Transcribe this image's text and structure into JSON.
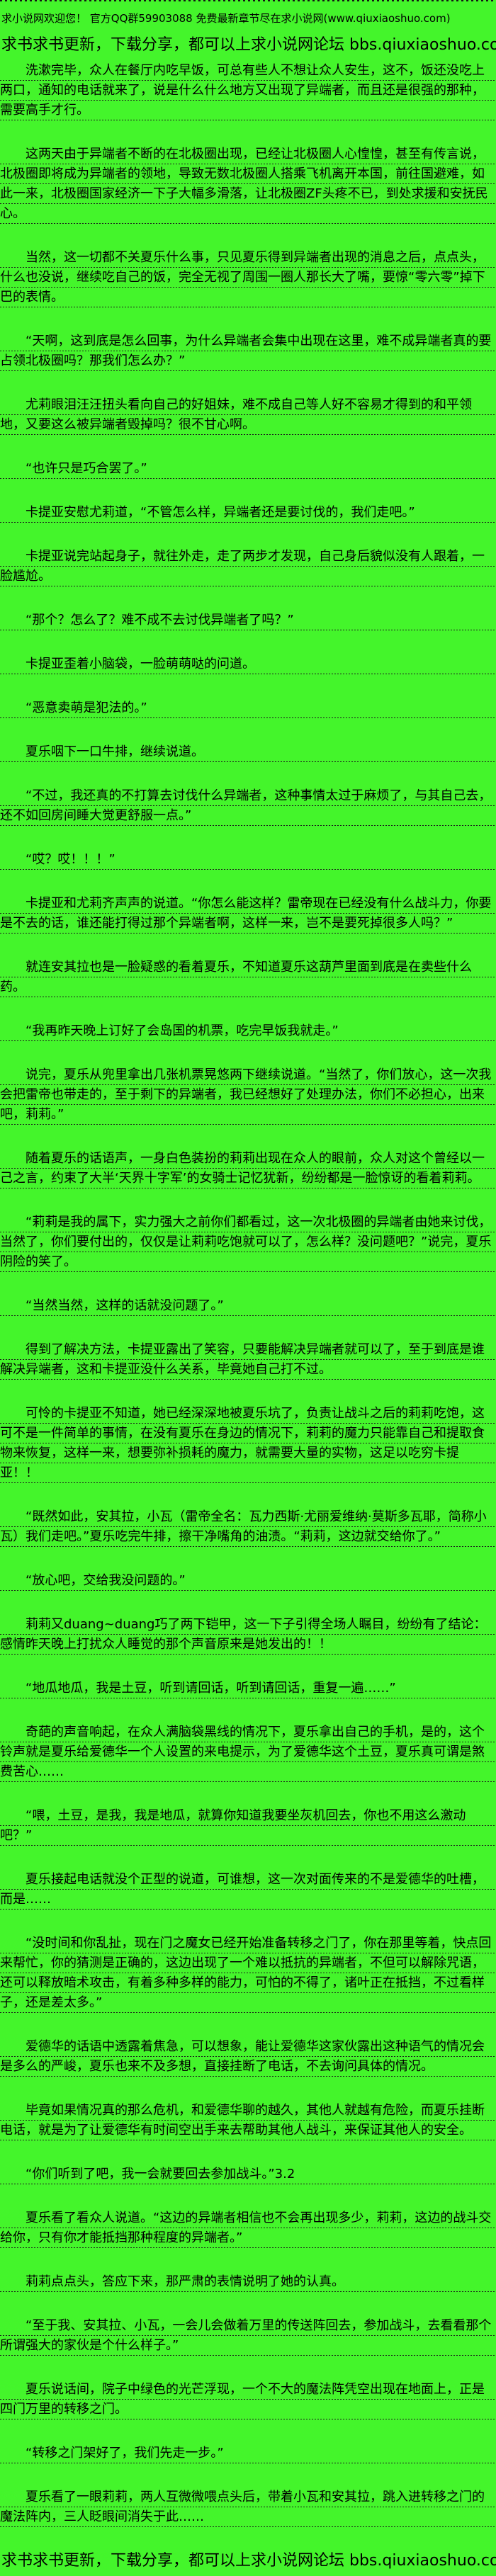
{
  "page": {
    "background_color": "#44F52B",
    "text_color": "#000000",
    "rule_color": "#1b1b1b"
  },
  "header": {
    "welcome_line": "求小说网欢迎您！ 官方QQ群59903088 免费最新章节尽在求小说网(www.qiuxiaoshuo.com)",
    "forum_line": "求书求书更新，下载分享，都可以上求小说网论坛 bbs.qiuxiaoshuo.com"
  },
  "chapter": {
    "paragraphs": [
      "洗漱完毕，众人在餐厅内吃早饭，可总有些人不想让众人安生，这不，饭还没吃上两口，通知的电话就来了，说是什么什么地方又出现了异端者，而且还是很强的那种，需要高手才行。",
      "这两天由于异端者不断的在北极圈出现，已经让北极圈人心惶惶，甚至有传言说，北极圈即将成为异端者的领地，导致无数北极圈人搭乘飞机离开本国，前往国避难，如此一来，北极圈国家经济一下子大幅多滑落，让北极圈ZF头疼不已，到处求援和安抚民心。",
      "当然，这一切都不关夏乐什么事，只见夏乐得到异端者出现的消息之后，点点头，什么也没说，继续吃自己的饭，完全无视了周围一圈人那长大了嘴，要惊“零六零”掉下巴的表情。",
      "“天啊，这到底是怎么回事，为什么异端者会集中出现在这里，难不成异端者真的要占领北极圈吗？那我们怎么办？”",
      "尤莉眼泪汪汪扭头看向自己的好姐妹，难不成自己等人好不容易才得到的和平领地，又要这么被异端者毁掉吗？很不甘心啊。",
      "“也许只是巧合罢了。”",
      "卡提亚安慰尤莉道，“不管怎么样，异端者还是要讨伐的，我们走吧。”",
      "卡提亚说完站起身子，就往外走，走了两步才发现，自己身后貌似没有人跟着，一脸尴尬。",
      "“那个？怎么了？难不成不去讨伐异端者了吗？”",
      "卡提亚歪着小脑袋，一脸萌萌哒的问道。",
      "“恶意卖萌是犯法的。”",
      "夏乐咽下一口牛排，继续说道。",
      "“不过，我还真的不打算去讨伐什么异端者，这种事情太过于麻烦了，与其自己去，还不如回房间睡大觉更舒服一点。”",
      "“哎？哎！！！”",
      "卡提亚和尤莉齐声声的说道。“你怎么能这样？雷帝现在已经没有什么战斗力，你要是不去的话，谁还能打得过那个异端者啊，这样一来，岂不是要死掉很多人吗？”",
      "就连安其拉也是一脸疑惑的看着夏乐，不知道夏乐这葫芦里面到底是在卖些什么药。",
      "“我再昨天晚上订好了会岛国的机票，吃完早饭我就走。”",
      "说完，夏乐从兜里拿出几张机票晃悠两下继续说道。“当然了，你们放心，这一次我会把雷帝也带走的，至于剩下的异端者，我已经想好了处理办法，你们不必担心，出来吧，莉莉。”",
      "随着夏乐的话语声，一身白色装扮的莉莉出现在众人的眼前，众人对这个曾经以一己之言，约束了大半‘天界十字军’的女骑士记忆犹新，纷纷都是一脸惊讶的看着莉莉。",
      "“莉莉是我的属下，实力强大之前你们都看过，这一次北极圈的异端者由她来讨伐，当然了，你们要付出的，仅仅是让莉莉吃饱就可以了，怎么样？没问题吧？”说完，夏乐阴险的笑了。",
      "“当然当然，这样的话就没问题了。”",
      "得到了解决方法，卡提亚露出了笑容，只要能解决异端者就可以了，至于到底是谁解决异端者，这和卡提亚没什么关系，毕竟她自己打不过。",
      "可怜的卡提亚不知道，她已经深深地被夏乐坑了，负责让战斗之后的莉莉吃饱，这可不是一件简单的事情，在没有夏乐在身边的情况下，莉莉的魔力只能靠自己和提取食物来恢复，这样一来，想要弥补损耗的魔力，就需要大量的实物，这足以吃穷卡提亚！！",
      "“既然如此，安其拉，小瓦（雷帝全名：瓦力西斯·尤丽爱维纳·莫斯多瓦耶，简称小瓦）我们走吧。”夏乐吃完牛排，擦干净嘴角的油渍。“莉莉，这边就交给你了。”",
      "“放心吧，交给我没问题的。”",
      "莉莉又duang~duang巧了两下铠甲，这一下子引得全场人瞩目，纷纷有了结论：感情昨天晚上打扰众人睡觉的那个声音原来是她发出的！！",
      "“地瓜地瓜，我是土豆，听到请回话，听到请回话，重复一遍……”",
      "奇葩的声音响起，在众人满脑袋黑线的情况下，夏乐拿出自己的手机，是的，这个铃声就是夏乐给爱德华一个人设置的来电提示，为了爱德华这个土豆，夏乐真可谓是煞费苦心……",
      "“喂，土豆，是我，我是地瓜，就算你知道我要坐灰机回去，你也不用这么激动吧？”",
      "夏乐接起电话就没个正型的说道，可谁想，这一次对面传来的不是爱德华的吐槽，而是……",
      "“没时间和你乱扯，现在门之魔女已经开始准备转移之门了，你在那里等着，快点回来帮忙，你的猜测是正确的，这边出现了一个难以抵抗的异端者，不但可以解除咒语，还可以释放暗术攻击，有着多种多样的能力，可怕的不得了，诸叶正在抵挡，不过看样子，还是差太多。”",
      "爱德华的话语中透露着焦急，可以想象，能让爱德华这家伙露出这种语气的情况会是多么的严峻，夏乐也来不及多想，直接挂断了电话，不去询问具体的情况。",
      "毕竟如果情况真的那么危机，和爱德华聊的越久，其他人就越有危险，而夏乐挂断电话，就是为了让爱德华有时间空出手来去帮助其他人战斗，来保证其他人的安全。",
      "“你们听到了吧，我一会就要回去参加战斗。”3.2",
      "夏乐看了看众人说道。“这边的异端者相信也不会再出现多少，莉莉，这边的战斗交给你，只有你才能抵挡那种程度的异端者。”",
      "莉莉点点头，答应下来，那严肃的表情说明了她的认真。",
      "“至于我、安其拉、小瓦，一会儿会做着万里的传送阵回去，参加战斗，去看看那个所谓强大的家伙是个什么样子。”",
      "夏乐说话间，院子中绿色的光芒浮现，一个不大的魔法阵凭空出现在地面上，正是四门万里的转移之门。",
      "“转移之门架好了，我们先走一步。”",
      "夏乐看了一眼莉莉，两人互微微喂点头后，带着小瓦和安其拉，跳入进转移之门的魔法阵内，三人眨眼间消失于此……"
    ]
  },
  "footer": {
    "forum_line": "求书求书更新，下载分享，都可以上求小说网论坛 bbs.qiuxiaoshuo.com"
  }
}
